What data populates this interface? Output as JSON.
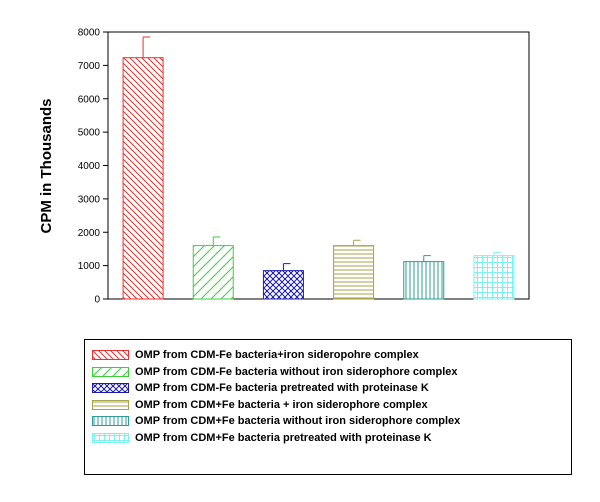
{
  "chart_data": {
    "type": "bar",
    "title": "",
    "xlabel": "",
    "ylabel": "CPM in Thousands",
    "ylim": [
      0,
      8000
    ],
    "yticks": [
      0,
      1000,
      2000,
      3000,
      4000,
      5000,
      6000,
      7000,
      8000
    ],
    "grid": false,
    "legend_position": "bottom",
    "categories": [
      "OMP from CDM-Fe bacteria+iron sideropohre complex",
      "OMP from CDM-Fe bacteria without iron siderophore complex",
      "OMP from CDM-Fe bacteria pretreated with proteinase K",
      "OMP from CDM+Fe bacteria + iron siderophore complex",
      "OMP from CDM+Fe bacteria without iron siderophore complex",
      "OMP from CDM+Fe bacteria pretreated with proteinase K"
    ],
    "values": [
      7230,
      1600,
      850,
      1600,
      1120,
      1300
    ],
    "errors": [
      620,
      260,
      210,
      160,
      180,
      100
    ],
    "colors": [
      "#e8312f",
      "#3ccf3c",
      "#1b1bb0",
      "#a8a24a",
      "#2f9b97",
      "#80f0ee"
    ],
    "patterns": [
      "diagonal-back",
      "diagonal-forward",
      "crosshatch",
      "horizontal",
      "vertical",
      "grid"
    ]
  }
}
